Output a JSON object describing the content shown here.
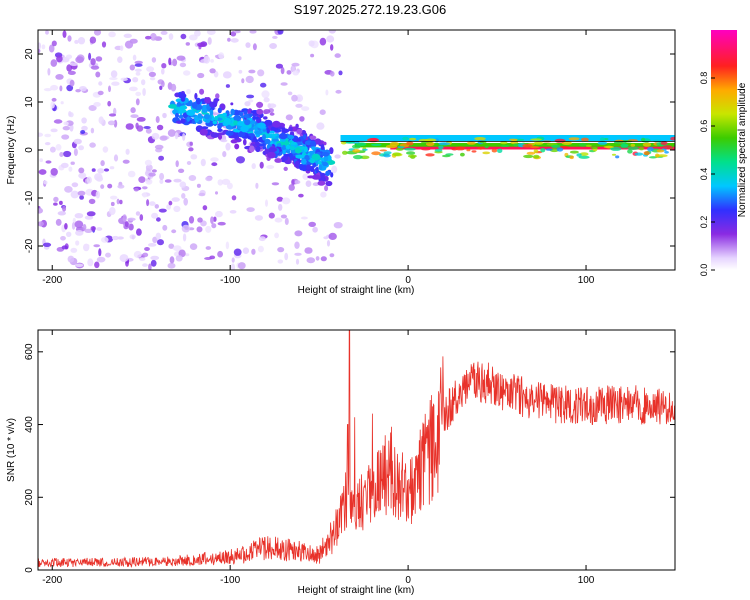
{
  "figure_title": "S197.2025.272.19.23.G06",
  "colors": {
    "snr_line": "#e8322a",
    "frame": "#000000",
    "trace": "#000000"
  },
  "chart_data": [
    {
      "type": "heatmap",
      "title": "S197.2025.272.19.23.G06",
      "xlabel": "Height of straight line (km)",
      "ylabel": "Frequency (Hz)",
      "xlim": [
        -208,
        150
      ],
      "ylim": [
        -25,
        25
      ],
      "x_ticks": [
        {
          "v": -200,
          "label": "-200"
        },
        {
          "v": -100,
          "label": "-100"
        },
        {
          "v": 0,
          "label": "0"
        },
        {
          "v": 100,
          "label": "100"
        }
      ],
      "y_ticks": [
        {
          "v": 20,
          "label": "20"
        },
        {
          "v": 10,
          "label": "10"
        },
        {
          "v": 0,
          "label": "0"
        },
        {
          "v": -10,
          "label": "-10"
        },
        {
          "v": -20,
          "label": "-20"
        }
      ],
      "colorbar": {
        "label": "Normalized spectral amplitude",
        "range": [
          0,
          1
        ],
        "ticks": [
          {
            "v": 0.0,
            "label": "0.0"
          },
          {
            "v": 0.2,
            "label": "0.2"
          },
          {
            "v": 0.4,
            "label": "0.4"
          },
          {
            "v": 0.6,
            "label": "0.6"
          },
          {
            "v": 0.8,
            "label": "0.8"
          }
        ],
        "stops": [
          {
            "v": 0.0,
            "color": "#ffffff"
          },
          {
            "v": 0.05,
            "color": "#e6d4ff"
          },
          {
            "v": 0.15,
            "color": "#8a2be2"
          },
          {
            "v": 0.25,
            "color": "#3030ff"
          },
          {
            "v": 0.35,
            "color": "#00c8ff"
          },
          {
            "v": 0.45,
            "color": "#00e08c"
          },
          {
            "v": 0.55,
            "color": "#3ccc00"
          },
          {
            "v": 0.65,
            "color": "#c8e600"
          },
          {
            "v": 0.75,
            "color": "#ffaa00"
          },
          {
            "v": 0.85,
            "color": "#ff2020"
          },
          {
            "v": 1.0,
            "color": "#ff00c0"
          }
        ]
      },
      "ridge": [
        {
          "x": -130,
          "y": 9,
          "spread": 4
        },
        {
          "x": -110,
          "y": 7,
          "spread": 4
        },
        {
          "x": -90,
          "y": 5,
          "spread": 4
        },
        {
          "x": -75,
          "y": 2,
          "spread": 4
        },
        {
          "x": -60,
          "y": 0,
          "spread": 4
        },
        {
          "x": -45,
          "y": -3,
          "spread": 5
        }
      ],
      "carrier_band": [
        {
          "x1": -38,
          "x2": 150,
          "freq": 2.5,
          "value": 0.35
        },
        {
          "x1": -30,
          "x2": 150,
          "freq": 1.0,
          "value": 0.55
        },
        {
          "x1": -10,
          "x2": 150,
          "freq": 0.4,
          "value": 0.9
        }
      ],
      "trace_line": {
        "x1": -38,
        "x2": 150,
        "freq": 1.8
      }
    },
    {
      "type": "line",
      "xlabel": "Height of straight line (km)",
      "ylabel": "SNR (10 * v/v)",
      "xlim": [
        -208,
        150
      ],
      "ylim": [
        0,
        660
      ],
      "x_ticks": [
        {
          "v": -200,
          "label": "-200"
        },
        {
          "v": -100,
          "label": "-100"
        },
        {
          "v": 0,
          "label": "0"
        },
        {
          "v": 100,
          "label": "100"
        }
      ],
      "y_ticks": [
        {
          "v": 0,
          "label": "0"
        },
        {
          "v": 200,
          "label": "200"
        },
        {
          "v": 400,
          "label": "400"
        },
        {
          "v": 600,
          "label": "600"
        }
      ],
      "series": [
        {
          "name": "SNR",
          "envelope": [
            {
              "x": -208,
              "y": 20
            },
            {
              "x": -150,
              "y": 22
            },
            {
              "x": -120,
              "y": 28
            },
            {
              "x": -100,
              "y": 35
            },
            {
              "x": -80,
              "y": 60
            },
            {
              "x": -65,
              "y": 55
            },
            {
              "x": -50,
              "y": 40
            },
            {
              "x": -40,
              "y": 120
            },
            {
              "x": -35,
              "y": 200
            },
            {
              "x": -30,
              "y": 180
            },
            {
              "x": -20,
              "y": 210
            },
            {
              "x": -10,
              "y": 280
            },
            {
              "x": 0,
              "y": 200
            },
            {
              "x": 10,
              "y": 300
            },
            {
              "x": 20,
              "y": 420
            },
            {
              "x": 30,
              "y": 500
            },
            {
              "x": 45,
              "y": 520
            },
            {
              "x": 60,
              "y": 480
            },
            {
              "x": 80,
              "y": 460
            },
            {
              "x": 100,
              "y": 450
            },
            {
              "x": 120,
              "y": 455
            },
            {
              "x": 150,
              "y": 450
            }
          ],
          "spikes": [
            {
              "x": -33,
              "y": 660
            },
            {
              "x": -34,
              "y": 400
            },
            {
              "x": -30,
              "y": 420
            },
            {
              "x": -20,
              "y": 430
            }
          ]
        }
      ]
    }
  ]
}
